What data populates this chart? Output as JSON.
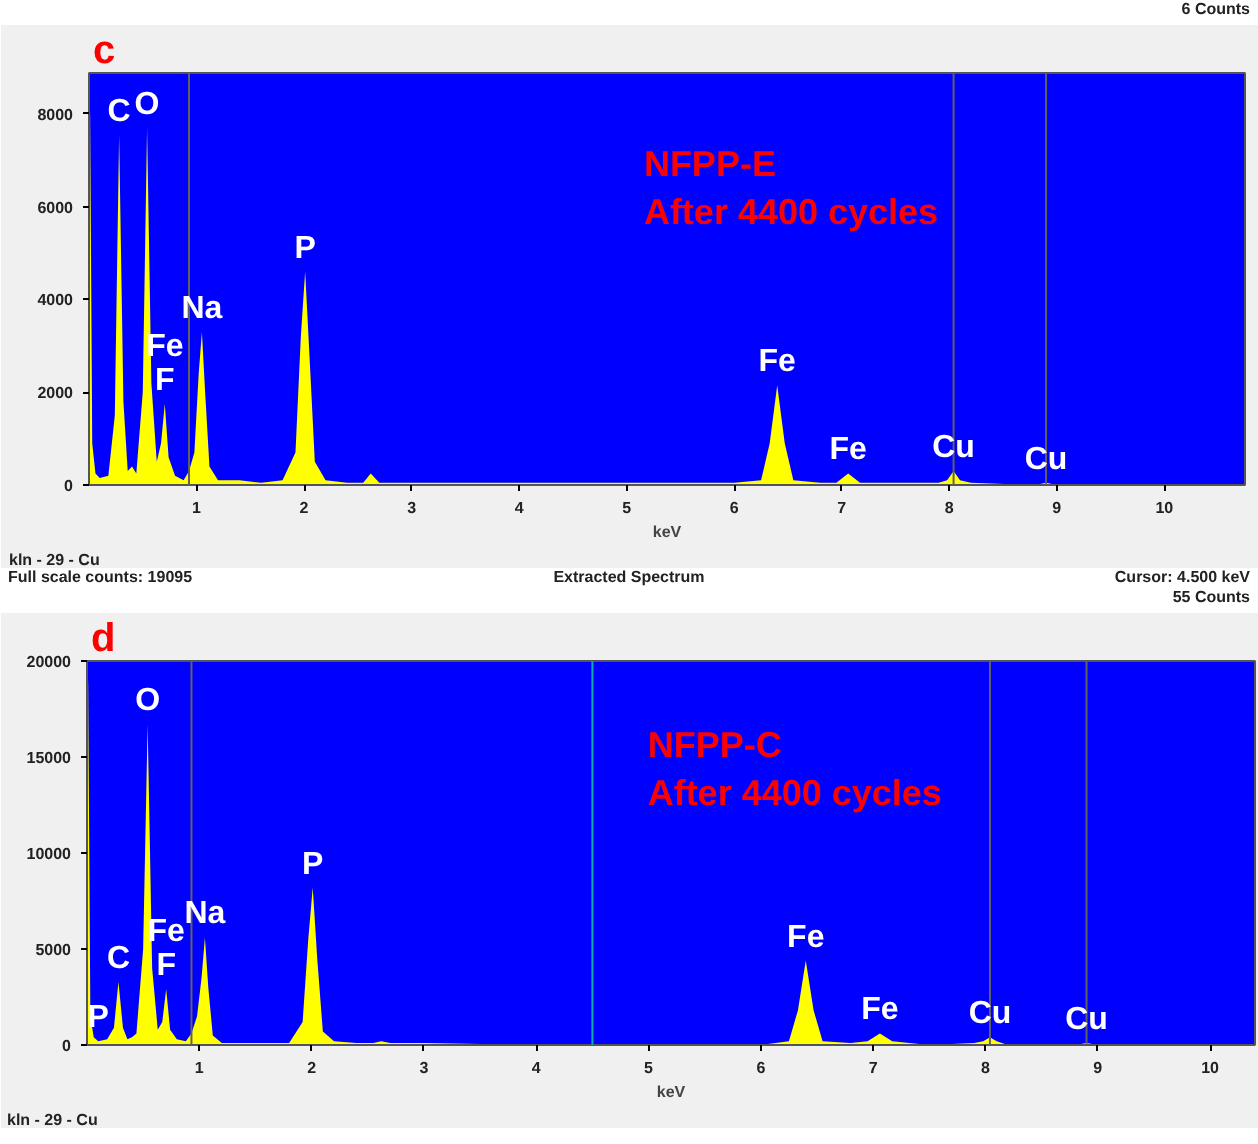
{
  "chart_data": [
    {
      "type": "area",
      "title": "c",
      "subtitle": "NFPP-E\nAfter 4400 cycles",
      "xlabel": "keV",
      "xlim": [
        0,
        10.75
      ],
      "ylim": [
        0,
        8880
      ],
      "xticks": [
        1,
        2,
        3,
        4,
        5,
        6,
        7,
        8,
        9,
        10
      ],
      "yticks": [
        0,
        2000,
        4000,
        6000,
        8000
      ],
      "series": [
        {
          "color": "#ffff00",
          "x": [
            0,
            0.01,
            0.03,
            0.06,
            0.1,
            0.18,
            0.24,
            0.28,
            0.32,
            0.36,
            0.4,
            0.44,
            0.5,
            0.54,
            0.58,
            0.63,
            0.67,
            0.705,
            0.74,
            0.8,
            0.88,
            0.93,
            0.98,
            1.02,
            1.05,
            1.08,
            1.12,
            1.2,
            1.4,
            1.6,
            1.8,
            1.92,
            1.97,
            2.01,
            2.05,
            2.1,
            2.2,
            2.4,
            2.55,
            2.62,
            2.7,
            3.0,
            4.0,
            5.0,
            6.0,
            6.25,
            6.33,
            6.4,
            6.47,
            6.55,
            6.8,
            6.95,
            7.06,
            7.17,
            7.5,
            7.9,
            7.98,
            8.04,
            8.1,
            8.2,
            8.8,
            8.9,
            9.0,
            10.0,
            10.75
          ],
          "values": [
            5500,
            8100,
            900,
            250,
            150,
            200,
            1500,
            7550,
            1800,
            300,
            400,
            250,
            2000,
            7700,
            2200,
            500,
            900,
            1750,
            600,
            200,
            100,
            300,
            700,
            2400,
            3300,
            2000,
            400,
            100,
            100,
            50,
            100,
            700,
            3200,
            4600,
            2800,
            500,
            100,
            50,
            50,
            250,
            50,
            50,
            50,
            50,
            50,
            100,
            900,
            2150,
            900,
            100,
            50,
            50,
            250,
            50,
            50,
            50,
            100,
            300,
            100,
            50,
            0,
            50,
            0,
            0,
            0
          ]
        }
      ],
      "ref_lines": [
        {
          "axis": "x",
          "value": 0.93,
          "color": "#606060"
        },
        {
          "axis": "x",
          "value": 8.04,
          "color": "#606060"
        },
        {
          "axis": "x",
          "value": 8.9,
          "color": "#606060"
        }
      ],
      "annotations": [
        "6 Counts",
        "kln - 29 - Cu",
        {
          "text": "C",
          "x": 0.28,
          "y": 7550
        },
        {
          "text": "O",
          "x": 0.54,
          "y": 7700
        },
        {
          "text": "F",
          "x": 0.705,
          "y": 1750
        },
        {
          "text": "Fe",
          "x": 0.705,
          "y": 1750
        },
        {
          "text": "Na",
          "x": 1.05,
          "y": 3300
        },
        {
          "text": "P",
          "x": 2.01,
          "y": 4600
        },
        {
          "text": "Fe",
          "x": 6.4,
          "y": 2150
        },
        {
          "text": "Fe",
          "x": 7.06,
          "y": 250
        },
        {
          "text": "Cu",
          "x": 8.04,
          "y": 300
        },
        {
          "text": "Cu",
          "x": 8.9,
          "y": 50
        }
      ]
    },
    {
      "type": "area",
      "title": "d",
      "subtitle": "NFPP-C\nAfter 4400 cycles",
      "xlabel": "keV",
      "xlim": [
        0,
        10.4
      ],
      "ylim": [
        0,
        20000
      ],
      "xticks": [
        1,
        2,
        3,
        4,
        5,
        6,
        7,
        8,
        9,
        10
      ],
      "yticks": [
        0,
        5000,
        10000,
        15000,
        20000
      ],
      "series": [
        {
          "color": "#ffff00",
          "x": [
            0,
            0.01,
            0.03,
            0.06,
            0.1,
            0.18,
            0.24,
            0.28,
            0.32,
            0.36,
            0.4,
            0.44,
            0.5,
            0.54,
            0.58,
            0.63,
            0.67,
            0.705,
            0.74,
            0.8,
            0.88,
            0.93,
            0.98,
            1.02,
            1.05,
            1.08,
            1.12,
            1.2,
            1.4,
            1.6,
            1.8,
            1.92,
            1.97,
            2.01,
            2.05,
            2.1,
            2.2,
            2.4,
            2.55,
            2.62,
            2.7,
            3.0,
            4.0,
            5.0,
            6.0,
            6.25,
            6.33,
            6.4,
            6.47,
            6.55,
            6.8,
            6.95,
            7.06,
            7.17,
            7.5,
            7.9,
            7.98,
            8.04,
            8.1,
            8.2,
            8.8,
            8.9,
            9.0,
            10.0,
            10.35
          ],
          "values": [
            15000,
            19100,
            1500,
            400,
            200,
            300,
            900,
            3300,
            900,
            300,
            400,
            600,
            5000,
            16700,
            4000,
            800,
            1200,
            2900,
            800,
            300,
            200,
            600,
            1500,
            3500,
            5600,
            3000,
            500,
            100,
            100,
            100,
            100,
            1200,
            5500,
            8200,
            4500,
            700,
            200,
            100,
            100,
            200,
            100,
            100,
            0,
            0,
            0,
            200,
            1800,
            4400,
            1800,
            200,
            100,
            200,
            600,
            200,
            0,
            100,
            200,
            400,
            200,
            0,
            0,
            100,
            0,
            0,
            0
          ]
        }
      ],
      "ref_lines": [
        {
          "axis": "x",
          "value": 4.5,
          "color": "#00b0b0"
        },
        {
          "axis": "x",
          "value": 0.93,
          "color": "#606060"
        },
        {
          "axis": "x",
          "value": 8.04,
          "color": "#606060"
        },
        {
          "axis": "x",
          "value": 8.9,
          "color": "#606060"
        }
      ],
      "annotations": [
        "Full scale counts: 19095",
        "Extracted Spectrum",
        "Cursor: 4.500 keV\n55 Counts",
        "kln - 29 - Cu",
        {
          "text": "P",
          "x": 0.1,
          "y": 200
        },
        {
          "text": "C",
          "x": 0.28,
          "y": 3300
        },
        {
          "text": "O",
          "x": 0.54,
          "y": 16700
        },
        {
          "text": "F",
          "x": 0.705,
          "y": 2900
        },
        {
          "text": "Fe",
          "x": 0.705,
          "y": 2900
        },
        {
          "text": "Na",
          "x": 1.05,
          "y": 5600
        },
        {
          "text": "P",
          "x": 2.01,
          "y": 8200
        },
        {
          "text": "Fe",
          "x": 6.4,
          "y": 4400
        },
        {
          "text": "Fe",
          "x": 7.06,
          "y": 600
        },
        {
          "text": "Cu",
          "x": 8.04,
          "y": 400
        },
        {
          "text": "Cu",
          "x": 8.9,
          "y": 100
        }
      ]
    }
  ]
}
